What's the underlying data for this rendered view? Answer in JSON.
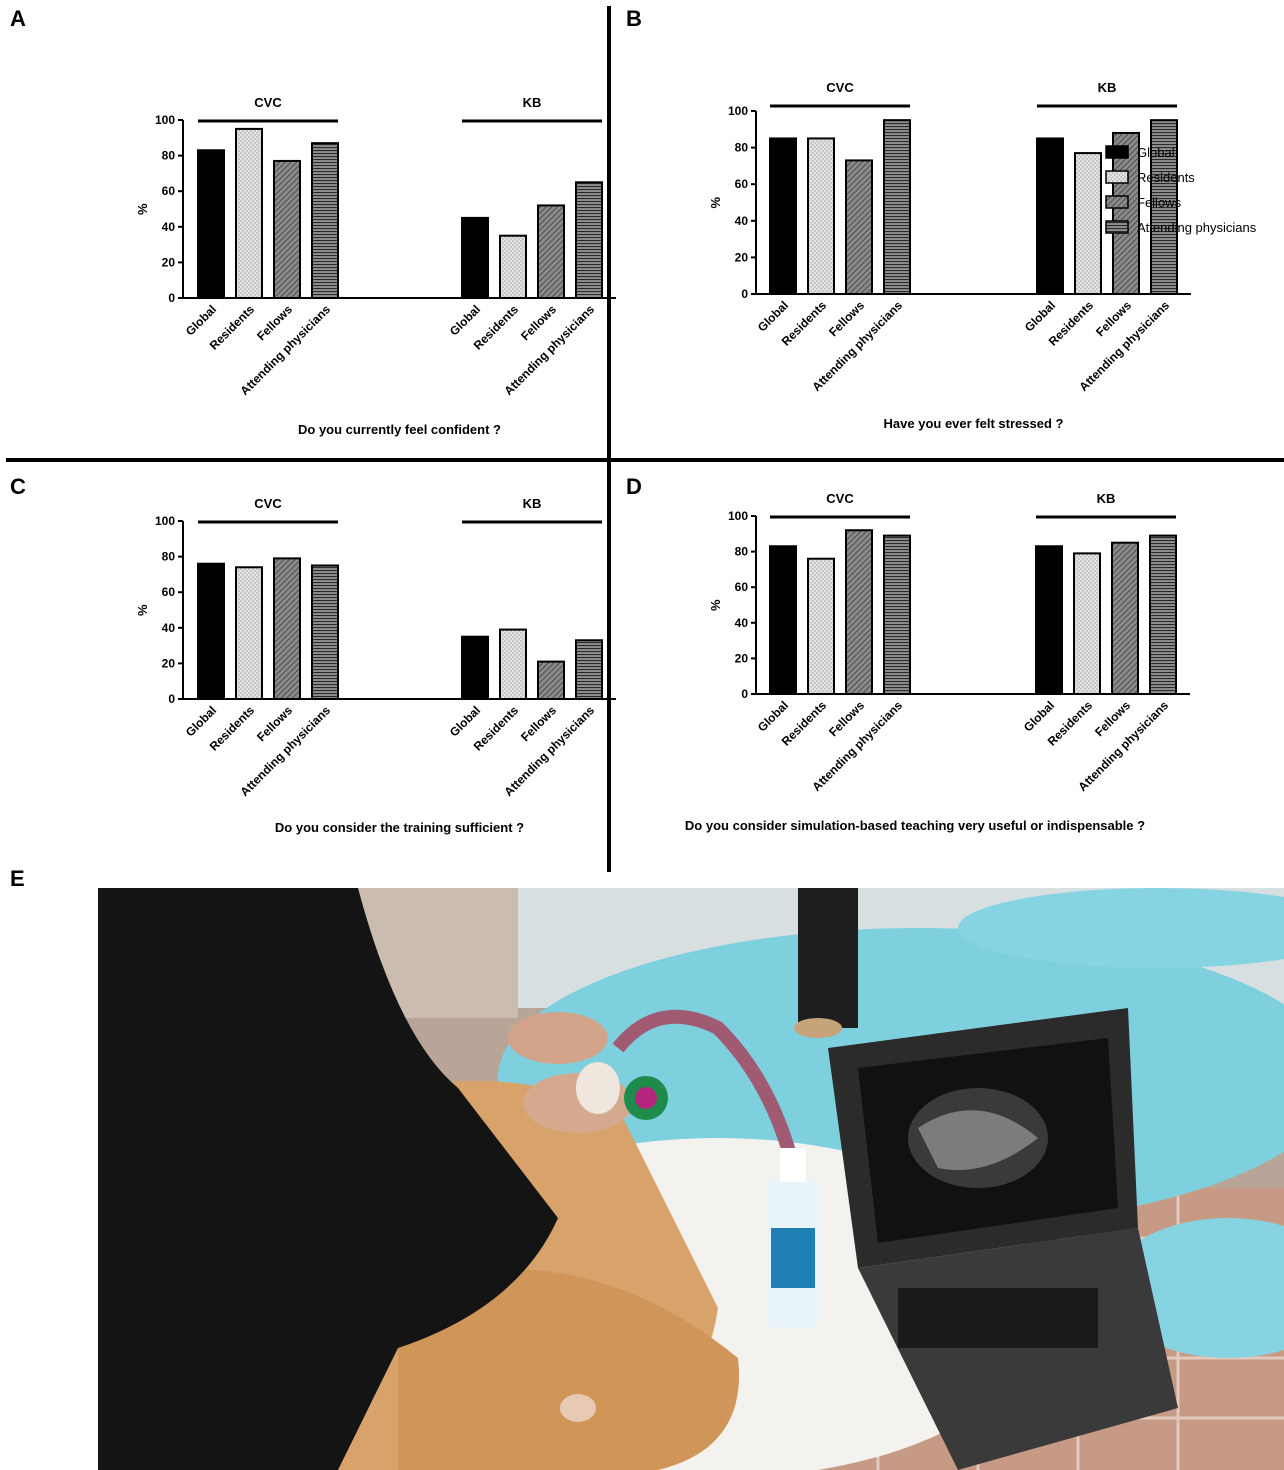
{
  "panels": [
    {
      "letter": "A"
    },
    {
      "letter": "B"
    },
    {
      "letter": "C"
    },
    {
      "letter": "D"
    },
    {
      "letter": "E"
    }
  ],
  "legend": {
    "entries": [
      "Global",
      "Residents",
      "Fellows",
      "Attending physicians"
    ]
  },
  "colors": {
    "Global": "#000000",
    "Residents": "#d9d9d9",
    "Fellows": "#6e6e6e",
    "Attending physicians": "#5a5a5a"
  },
  "chart_data": [
    {
      "panel": "A",
      "type": "bar",
      "title": "Do you currently feel confident ?",
      "ylabel": "%",
      "ylim": [
        0,
        100
      ],
      "yticks": [
        0,
        20,
        40,
        60,
        80,
        100
      ],
      "groups": [
        "CVC",
        "KB"
      ],
      "categories": [
        "Global",
        "Residents",
        "Fellows",
        "Attending physicians"
      ],
      "series": [
        {
          "group": "CVC",
          "values": [
            83,
            95,
            77,
            87
          ]
        },
        {
          "group": "KB",
          "values": [
            45,
            35,
            52,
            65
          ]
        }
      ]
    },
    {
      "panel": "B",
      "type": "bar",
      "title": "Have you ever felt stressed ?",
      "ylabel": "%",
      "ylim": [
        0,
        100
      ],
      "yticks": [
        0,
        20,
        40,
        60,
        80,
        100
      ],
      "groups": [
        "CVC",
        "KB"
      ],
      "categories": [
        "Global",
        "Residents",
        "Fellows",
        "Attending physicians"
      ],
      "series": [
        {
          "group": "CVC",
          "values": [
            85,
            85,
            73,
            95
          ]
        },
        {
          "group": "KB",
          "values": [
            85,
            77,
            88,
            95
          ]
        }
      ]
    },
    {
      "panel": "C",
      "type": "bar",
      "title": "Do you consider the training sufficient ?",
      "ylabel": "%",
      "ylim": [
        0,
        100
      ],
      "yticks": [
        0,
        20,
        40,
        60,
        80,
        100
      ],
      "groups": [
        "CVC",
        "KB"
      ],
      "categories": [
        "Global",
        "Residents",
        "Fellows",
        "Attending physicians"
      ],
      "series": [
        {
          "group": "CVC",
          "values": [
            76,
            74,
            79,
            75
          ]
        },
        {
          "group": "KB",
          "values": [
            35,
            39,
            21,
            33
          ]
        }
      ]
    },
    {
      "panel": "D",
      "type": "bar",
      "title": "Do you consider simulation-based teaching very useful or indispensable ?",
      "ylabel": "%",
      "ylim": [
        0,
        100
      ],
      "yticks": [
        0,
        20,
        40,
        60,
        80,
        100
      ],
      "groups": [
        "CVC",
        "KB"
      ],
      "categories": [
        "Global",
        "Residents",
        "Fellows",
        "Attending physicians"
      ],
      "series": [
        {
          "group": "CVC",
          "values": [
            83,
            76,
            92,
            89
          ]
        },
        {
          "group": "KB",
          "values": [
            83,
            79,
            85,
            89
          ]
        }
      ]
    }
  ]
}
